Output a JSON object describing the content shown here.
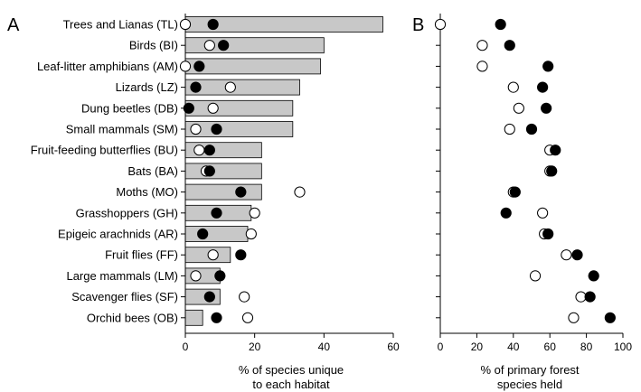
{
  "chart_data": [
    {
      "type": "bar",
      "panel_label": "A",
      "xlabel_lines": [
        "% of species unique",
        "to each habitat"
      ],
      "xlim": [
        0,
        60
      ],
      "xticks": [
        0,
        20,
        40,
        60
      ],
      "categories": [
        "Trees and Lianas (TL)",
        "Birds (BI)",
        "Leaf-litter amphibians (AM)",
        "Lizards (LZ)",
        "Dung beetles (DB)",
        "Small mammals (SM)",
        "Fruit-feeding butterflies (BU)",
        "Bats (BA)",
        "Moths (MO)",
        "Grasshoppers (GH)",
        "Epigeic arachnids (AR)",
        "Fruit flies (FF)",
        "Large mammals (LM)",
        "Scavenger flies (SF)",
        "Orchid bees (OB)"
      ],
      "bars": [
        57,
        40,
        39,
        33,
        31,
        31,
        22,
        22,
        22,
        19,
        18,
        13,
        10,
        10,
        5
      ],
      "filled": [
        8,
        11,
        4,
        3,
        1,
        9,
        7,
        7,
        16,
        9,
        5,
        16,
        10,
        7,
        9
      ],
      "open": [
        0,
        7,
        0,
        13,
        8,
        3,
        4,
        6,
        33,
        20,
        19,
        8,
        3,
        17,
        18
      ],
      "colors": {
        "bar_fill": "#c8c8c8",
        "bar_stroke": "#000000",
        "filled_marker": "#000000",
        "open_marker": "#ffffff"
      }
    },
    {
      "type": "scatter",
      "panel_label": "B",
      "xlabel_lines": [
        "% of primary forest",
        "species held"
      ],
      "xlim": [
        0,
        100
      ],
      "xticks": [
        0,
        20,
        40,
        60,
        80,
        100
      ],
      "filled": [
        33,
        38,
        59,
        56,
        58,
        50,
        63,
        61,
        41,
        36,
        59,
        75,
        84,
        82,
        93
      ],
      "open": [
        0,
        23,
        23,
        40,
        43,
        38,
        60,
        60,
        40,
        56,
        57,
        69,
        52,
        77,
        73
      ],
      "colors": {
        "filled_marker": "#000000",
        "open_marker": "#ffffff"
      }
    }
  ]
}
